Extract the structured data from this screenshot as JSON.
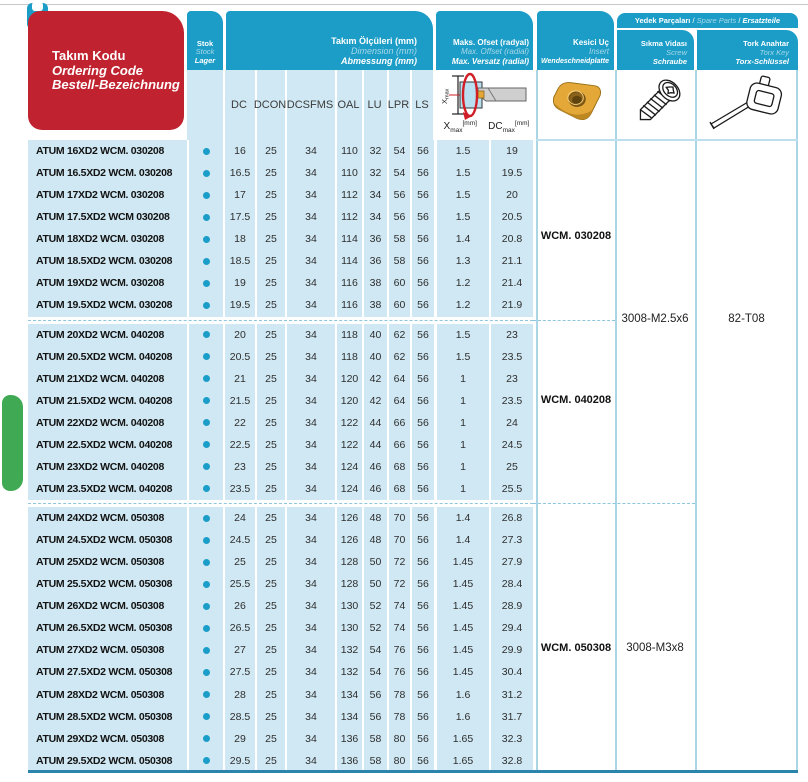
{
  "colors": {
    "header_blue": "#1b9dc7",
    "row_blue": "#cfe8f3",
    "red": "#c0232f",
    "green": "#3fa953",
    "bottom_bar_blue": "#2b84ab",
    "divider_blue": "#a9d5e7",
    "light_italic_text": "#a8d8e8",
    "insert_gold": "#e3a838",
    "stock_dot": "#1a9dc8"
  },
  "header": {
    "ordering": {
      "tr": "Takım Kodu",
      "en": "Ordering Code",
      "de": "Bestell-Bezeichnung"
    },
    "stock": {
      "tr": "Stok",
      "en": "Stock",
      "de": "Lager"
    },
    "dimensions": {
      "tr": "Takım Ölçüleri (mm)",
      "en": "Dimension (mm)",
      "de": "Abmessung (mm)"
    },
    "offset": {
      "tr": "Maks. Ofset (radyal)",
      "en": "Max. Offset (radial)",
      "de": "Max. Versatz (radial)"
    },
    "insert": {
      "tr": "Kesici Uç",
      "en": "Insert",
      "de": "Wendeschneidplatte"
    },
    "spare": {
      "tr": "Yedek Parçaları",
      "sep": " / ",
      "en": "Spare Parts",
      "de": "Ersatzteile"
    },
    "screw": {
      "tr": "Sıkma Vidası",
      "en": "Screw",
      "de": "Schraube"
    },
    "torx": {
      "tr": "Tork Anahtar",
      "en": "Torx Key",
      "de": "Torx-Schlüssel"
    }
  },
  "table": {
    "dim_columns": [
      "DC",
      "DCON",
      "DCSFMS",
      "OAL",
      "LU",
      "LPR",
      "LS"
    ],
    "offset_columns": {
      "x": {
        "base": "X",
        "sub": "max",
        "unit": "[mm]"
      },
      "dc": {
        "base": "DC",
        "sub": "max",
        "unit": "[mm]"
      }
    },
    "diagram_label": {
      "base": "X",
      "sub": "max"
    },
    "groups": [
      {
        "insert_label": "WCM. 030208",
        "rows": [
          [
            "ATUM 16XD2 WCM. 030208",
            "16",
            "25",
            "34",
            "110",
            "32",
            "54",
            "56",
            "1.5",
            "19"
          ],
          [
            "ATUM 16.5XD2 WCM. 030208",
            "16.5",
            "25",
            "34",
            "110",
            "32",
            "54",
            "56",
            "1.5",
            "19.5"
          ],
          [
            "ATUM 17XD2 WCM. 030208",
            "17",
            "25",
            "34",
            "112",
            "34",
            "56",
            "56",
            "1.5",
            "20"
          ],
          [
            "ATUM 17.5XD2 WCM 030208",
            "17.5",
            "25",
            "34",
            "112",
            "34",
            "56",
            "56",
            "1.5",
            "20.5"
          ],
          [
            "ATUM 18XD2 WCM. 030208",
            "18",
            "25",
            "34",
            "114",
            "36",
            "58",
            "56",
            "1.4",
            "20.8"
          ],
          [
            "ATUM 18.5XD2 WCM. 030208",
            "18.5",
            "25",
            "34",
            "114",
            "36",
            "58",
            "56",
            "1.3",
            "21.1"
          ],
          [
            "ATUM 19XD2 WCM. 030208",
            "19",
            "25",
            "34",
            "116",
            "38",
            "60",
            "56",
            "1.2",
            "21.4"
          ],
          [
            "ATUM 19.5XD2 WCM. 030208",
            "19.5",
            "25",
            "34",
            "116",
            "38",
            "60",
            "56",
            "1.2",
            "21.9"
          ]
        ]
      },
      {
        "insert_label": "WCM. 040208",
        "rows": [
          [
            "ATUM 20XD2 WCM. 040208",
            "20",
            "25",
            "34",
            "118",
            "40",
            "62",
            "56",
            "1.5",
            "23"
          ],
          [
            "ATUM 20.5XD2 WCM. 040208",
            "20.5",
            "25",
            "34",
            "118",
            "40",
            "62",
            "56",
            "1.5",
            "23.5"
          ],
          [
            "ATUM 21XD2 WCM. 040208",
            "21",
            "25",
            "34",
            "120",
            "42",
            "64",
            "56",
            "1",
            "23"
          ],
          [
            "ATUM 21.5XD2 WCM. 040208",
            "21.5",
            "25",
            "34",
            "120",
            "42",
            "64",
            "56",
            "1",
            "23.5"
          ],
          [
            "ATUM 22XD2 WCM. 040208",
            "22",
            "25",
            "34",
            "122",
            "44",
            "66",
            "56",
            "1",
            "24"
          ],
          [
            "ATUM 22.5XD2 WCM. 040208",
            "22.5",
            "25",
            "34",
            "122",
            "44",
            "66",
            "56",
            "1",
            "24.5"
          ],
          [
            "ATUM 23XD2 WCM. 040208",
            "23",
            "25",
            "34",
            "124",
            "46",
            "68",
            "56",
            "1",
            "25"
          ],
          [
            "ATUM 23.5XD2 WCM. 040208",
            "23.5",
            "25",
            "34",
            "124",
            "46",
            "68",
            "56",
            "1",
            "25.5"
          ]
        ]
      },
      {
        "insert_label": "WCM. 050308",
        "rows": [
          [
            "ATUM 24XD2 WCM. 050308",
            "24",
            "25",
            "34",
            "126",
            "48",
            "70",
            "56",
            "1.4",
            "26.8"
          ],
          [
            "ATUM 24.5XD2 WCM. 050308",
            "24.5",
            "25",
            "34",
            "126",
            "48",
            "70",
            "56",
            "1.4",
            "27.3"
          ],
          [
            "ATUM 25XD2 WCM. 050308",
            "25",
            "25",
            "34",
            "128",
            "50",
            "72",
            "56",
            "1.45",
            "27.9"
          ],
          [
            "ATUM 25.5XD2 WCM. 050308",
            "25.5",
            "25",
            "34",
            "128",
            "50",
            "72",
            "56",
            "1.45",
            "28.4"
          ],
          [
            "ATUM 26XD2 WCM. 050308",
            "26",
            "25",
            "34",
            "130",
            "52",
            "74",
            "56",
            "1.45",
            "28.9"
          ],
          [
            "ATUM 26.5XD2 WCM. 050308",
            "26.5",
            "25",
            "34",
            "130",
            "52",
            "74",
            "56",
            "1.45",
            "29.4"
          ],
          [
            "ATUM 27XD2 WCM. 050308",
            "27",
            "25",
            "34",
            "132",
            "54",
            "76",
            "56",
            "1.45",
            "29.9"
          ],
          [
            "ATUM 27.5XD2 WCM. 050308",
            "27.5",
            "25",
            "34",
            "132",
            "54",
            "76",
            "56",
            "1.45",
            "30.4"
          ],
          [
            "ATUM 28XD2 WCM. 050308",
            "28",
            "25",
            "34",
            "134",
            "56",
            "78",
            "56",
            "1.6",
            "31.2"
          ],
          [
            "ATUM 28.5XD2 WCM. 050308",
            "28.5",
            "25",
            "34",
            "134",
            "56",
            "78",
            "56",
            "1.6",
            "31.7"
          ],
          [
            "ATUM 29XD2 WCM. 050308",
            "29",
            "25",
            "34",
            "136",
            "58",
            "80",
            "56",
            "1.65",
            "32.3"
          ],
          [
            "ATUM 29.5XD2 WCM. 050308",
            "29.5",
            "25",
            "34",
            "136",
            "58",
            "80",
            "56",
            "1.65",
            "32.8"
          ]
        ]
      }
    ],
    "screw_labels": [
      {
        "label": "3008-M2.5x6"
      },
      {
        "label": "3008-M3x8"
      }
    ],
    "torx_label": "82-T08"
  }
}
